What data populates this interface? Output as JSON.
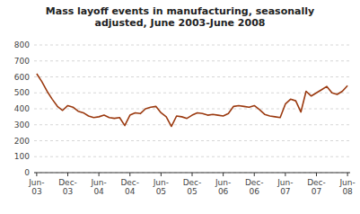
{
  "chart_data": {
    "type": "line",
    "title": "Mass layoff events in manufacturing, seasonally\nadjusted, June 2003-June 2008",
    "categories": [
      "Jun-\n03",
      null,
      null,
      null,
      null,
      null,
      "Dec-\n03",
      null,
      null,
      null,
      null,
      null,
      "Jun-\n04",
      null,
      null,
      null,
      null,
      null,
      "Dec-\n04",
      null,
      null,
      null,
      null,
      null,
      "Jun-\n05",
      null,
      null,
      null,
      null,
      null,
      "Dec-\n05",
      null,
      null,
      null,
      null,
      null,
      "Jun-\n06",
      null,
      null,
      null,
      null,
      null,
      "Dec-\n06",
      null,
      null,
      null,
      null,
      null,
      "Jun-\n07",
      null,
      null,
      null,
      null,
      null,
      "Dec-\n07",
      null,
      null,
      null,
      null,
      null,
      "Jun-\n08"
    ],
    "values": [
      620,
      570,
      510,
      460,
      415,
      390,
      420,
      410,
      385,
      375,
      355,
      345,
      350,
      360,
      345,
      340,
      345,
      295,
      360,
      375,
      370,
      400,
      410,
      415,
      375,
      350,
      290,
      355,
      350,
      340,
      360,
      375,
      370,
      360,
      365,
      360,
      355,
      370,
      415,
      420,
      415,
      410,
      420,
      395,
      365,
      355,
      350,
      345,
      430,
      460,
      450,
      380,
      510,
      480,
      500,
      520,
      540,
      500,
      490,
      510,
      545
    ],
    "color": "#9B3A10",
    "ylim": [
      0,
      800
    ],
    "yticks": [
      0,
      100,
      200,
      300,
      400,
      500,
      600,
      700,
      800
    ],
    "grid": true
  }
}
